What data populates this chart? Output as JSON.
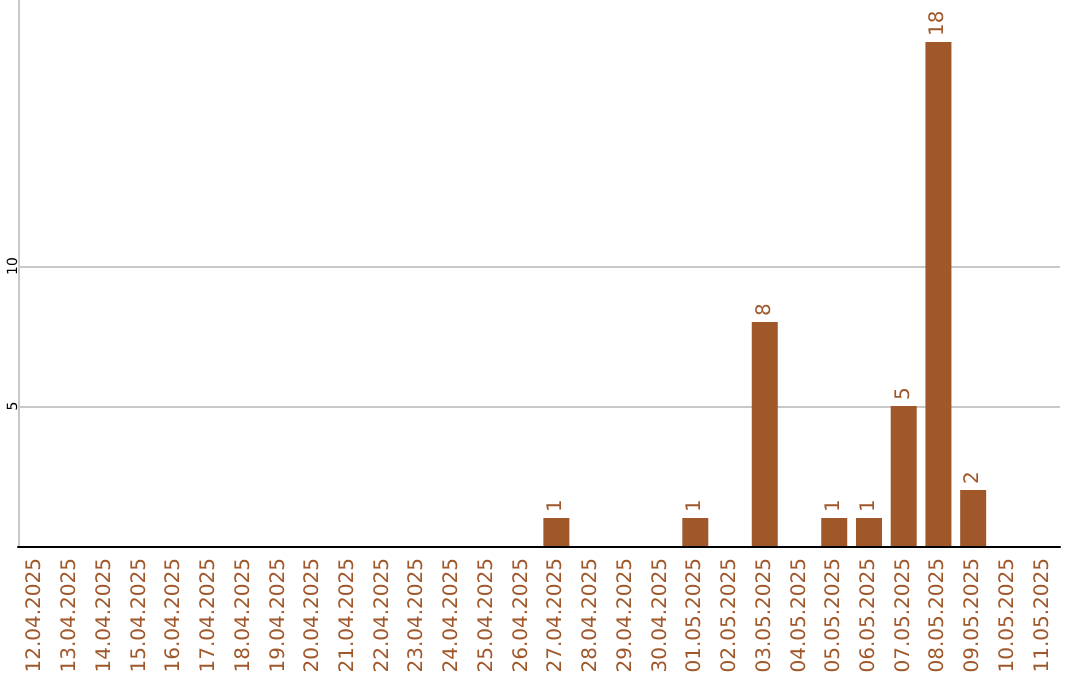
{
  "chart_data": {
    "type": "bar",
    "categories": [
      "12.04.2025",
      "13.04.2025",
      "14.04.2025",
      "15.04.2025",
      "16.04.2025",
      "17.04.2025",
      "18.04.2025",
      "19.04.2025",
      "20.04.2025",
      "21.04.2025",
      "22.04.2025",
      "23.04.2025",
      "24.04.2025",
      "25.04.2025",
      "26.04.2025",
      "27.04.2025",
      "28.04.2025",
      "29.04.2025",
      "30.04.2025",
      "01.05.2025",
      "02.05.2025",
      "03.05.2025",
      "04.05.2025",
      "05.05.2025",
      "06.05.2025",
      "07.05.2025",
      "08.05.2025",
      "09.05.2025",
      "10.05.2025",
      "11.05.2025"
    ],
    "values": [
      0,
      0,
      0,
      0,
      0,
      0,
      0,
      0,
      0,
      0,
      0,
      0,
      0,
      0,
      0,
      1,
      0,
      0,
      0,
      1,
      0,
      8,
      0,
      1,
      1,
      5,
      18,
      2,
      0,
      0
    ],
    "value_labels": [
      null,
      null,
      null,
      null,
      null,
      null,
      null,
      null,
      null,
      null,
      null,
      null,
      null,
      null,
      null,
      "1",
      null,
      null,
      null,
      "1",
      null,
      "8",
      null,
      "1",
      "1",
      "5",
      "18",
      "2",
      null,
      null
    ],
    "color": "#a0572a",
    "ylim": [
      0,
      19.5
    ],
    "yticks": [
      5,
      10
    ],
    "grid": "y"
  }
}
